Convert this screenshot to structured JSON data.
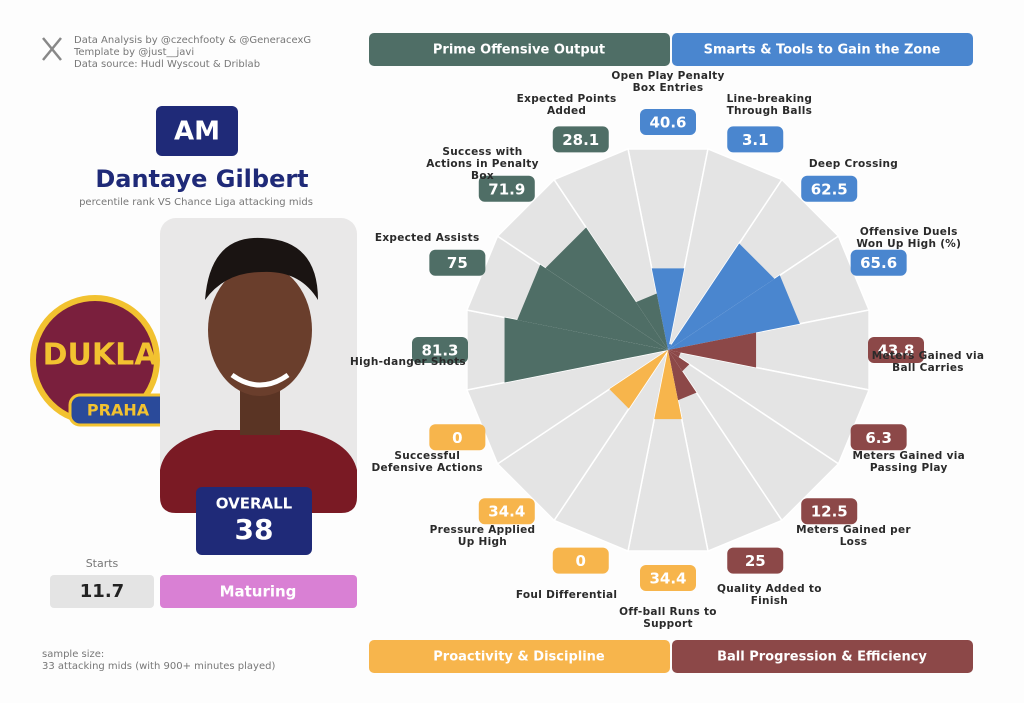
{
  "header": {
    "credits": [
      "Data Analysis by @czechfooty & @GeneracexG",
      "Template by @just__javi",
      "Data source: Hudl Wyscout & Driblab"
    ]
  },
  "player": {
    "position": "AM",
    "name": "Dantaye Gilbert",
    "subtitle": "percentile rank VS Chance Liga attacking mids",
    "overall_label": "OVERALL",
    "overall": 38,
    "starts_label": "Starts",
    "starts": 11.7,
    "status": "Maturing"
  },
  "logo": {
    "name": "DUKLA",
    "city": "PRAHA"
  },
  "footer": {
    "sample_label": "sample size:",
    "sample_text": "33 attacking mids (with 900+ minutes played)"
  },
  "chart_data": {
    "type": "polar-bar",
    "rlim": [
      0,
      100
    ],
    "series": [
      {
        "name": "Smarts & Tools to Gain the Zone",
        "color": "#4a86cf",
        "categories": [
          "Open Play Penalty Box Entries",
          "Line-breaking Through Balls",
          "Deep Crossing",
          "Offensive Duels Won Up High (%)"
        ],
        "values": [
          40.6,
          3.1,
          62.5,
          65.6
        ]
      },
      {
        "name": "Ball Progression & Efficiency",
        "color": "#8c4848",
        "categories": [
          "Meters Gained via Ball Carries",
          "Meters Gained via Passing Play",
          "Meters Gained per Loss",
          "Quality Added to Finish"
        ],
        "values": [
          43.8,
          6.3,
          12.5,
          25
        ]
      },
      {
        "name": "Proactivity & Discipline",
        "color": "#f7b54c",
        "categories": [
          "Off-ball Runs to Support",
          "Foul Differential",
          "Pressure Applied Up High",
          "Successful Defensive Actions"
        ],
        "values": [
          34.4,
          0,
          34.4,
          0
        ]
      },
      {
        "name": "Prime Offensive Output",
        "color": "#4f6e66",
        "categories": [
          "High-danger Shots",
          "Expected Assists",
          "Success with Actions in Penalty Box",
          "Expected Points Added"
        ],
        "values": [
          81.3,
          75,
          71.9,
          28.1
        ]
      }
    ]
  }
}
